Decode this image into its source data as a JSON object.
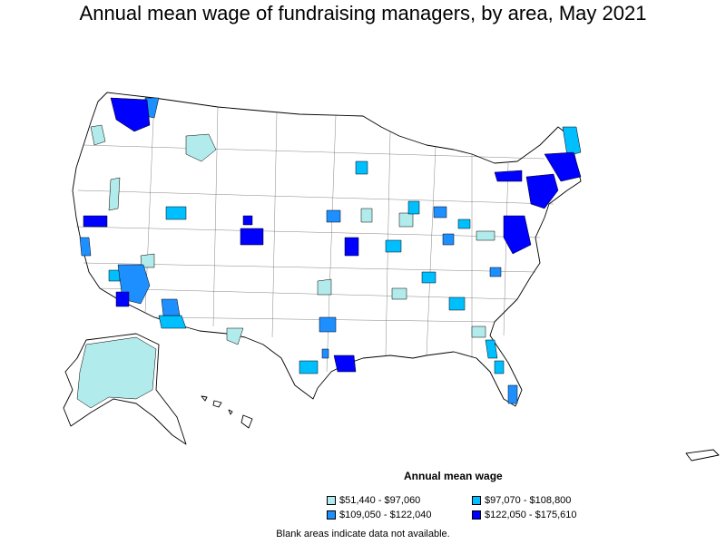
{
  "title": "Annual mean wage of fundraising managers, by area, May 2021",
  "legend": {
    "title": "Annual mean wage",
    "items": [
      {
        "label": "$51,440 - $97,060",
        "color": "#b2ebeb"
      },
      {
        "label": "$97,070 - $108,800",
        "color": "#00bfff"
      },
      {
        "label": "$109,050 - $122,040",
        "color": "#1e8fff"
      },
      {
        "label": "$122,050 - $175,610",
        "color": "#0000ff"
      }
    ]
  },
  "note": "Blank areas indicate data not available.",
  "colors": {
    "border": "#000000",
    "background": "#ffffff"
  }
}
